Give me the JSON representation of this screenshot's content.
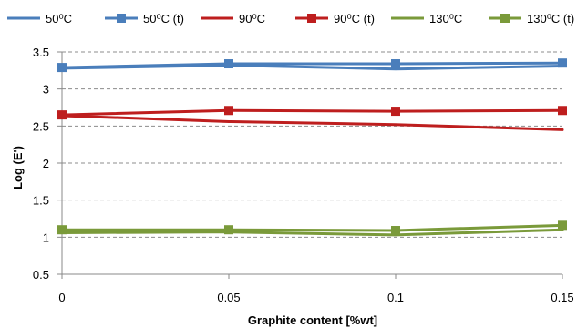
{
  "chart_data": {
    "type": "line",
    "xlabel": "Graphite content [%wt]",
    "ylabel": "Log (E')",
    "x": [
      0,
      0.05,
      0.1,
      0.15
    ],
    "x_tick_labels": [
      "0",
      "0.05",
      "0.1",
      "0.15"
    ],
    "y_tick_labels": [
      "0.5",
      "1",
      "1.5",
      "2",
      "2.5",
      "3",
      "3.5"
    ],
    "y_ticks": [
      0.5,
      1,
      1.5,
      2,
      2.5,
      3,
      3.5
    ],
    "xlim": [
      0,
      0.15
    ],
    "ylim": [
      0.5,
      3.5
    ],
    "grid": "horizontal dashed",
    "legend_position": "top",
    "series": [
      {
        "name": "50⁰C",
        "values": [
          3.28,
          3.32,
          3.27,
          3.31
        ],
        "color": "#4a7ebb",
        "marker": "none"
      },
      {
        "name": "50⁰C (t)",
        "values": [
          3.29,
          3.34,
          3.34,
          3.35
        ],
        "color": "#4a7ebb",
        "marker": "square"
      },
      {
        "name": "90⁰C",
        "values": [
          2.64,
          2.56,
          2.52,
          2.45
        ],
        "color": "#be1e1e",
        "marker": "none"
      },
      {
        "name": "90⁰C (t)",
        "values": [
          2.65,
          2.71,
          2.7,
          2.71
        ],
        "color": "#be1e1e",
        "marker": "square"
      },
      {
        "name": "130⁰C",
        "values": [
          1.06,
          1.07,
          1.03,
          1.1
        ],
        "color": "#7a9a3a",
        "marker": "none"
      },
      {
        "name": "130⁰C (t)",
        "values": [
          1.1,
          1.1,
          1.09,
          1.16
        ],
        "color": "#7a9a3a",
        "marker": "square"
      }
    ]
  }
}
